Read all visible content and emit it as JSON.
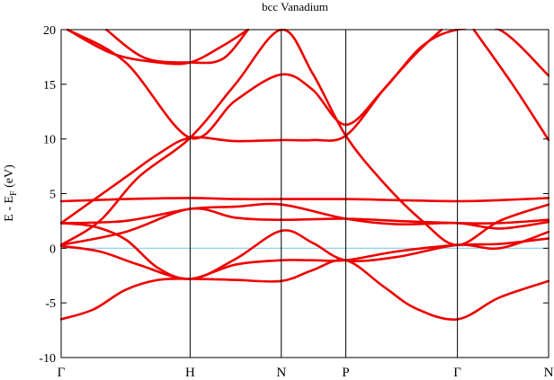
{
  "chart_data": {
    "type": "line",
    "title": "bcc Vanadium",
    "xlabel": "",
    "ylabel": "E - E",
    "ylabel_sub": "F",
    "ylabel_unit": " (eV)",
    "ylim": [
      -10,
      20
    ],
    "xlim": [
      0,
      6.0
    ],
    "yticks": [
      -10,
      -5,
      0,
      5,
      10,
      15,
      20
    ],
    "kpoints": [
      {
        "label": "Γ",
        "x": 0.0
      },
      {
        "label": "H",
        "x": 1.0
      },
      {
        "label": "N",
        "x": 1.7071
      },
      {
        "label": "P",
        "x": 2.2071
      },
      {
        "label": "Γ",
        "x": 3.0731
      },
      {
        "label": "N",
        "x": 3.7802
      }
    ],
    "fermi_level": 0,
    "fermi_color": "#87ceeb",
    "band_color": "#ee0000",
    "series": [
      {
        "x": [
          0,
          0.25,
          0.5,
          0.75,
          1.0,
          1.35,
          1.7071,
          1.95,
          2.2071,
          2.5,
          2.75,
          3.0731,
          3.4,
          3.7802
        ],
        "values": [
          -6.5,
          -5.6,
          -3.8,
          -2.9,
          -2.8,
          -2.9,
          -3.0,
          -2.0,
          -1.1,
          -3.5,
          -5.5,
          -6.5,
          -4.5,
          -3.0
        ]
      },
      {
        "x": [
          0,
          0.3,
          0.6,
          1.0,
          1.35,
          1.7071,
          1.95,
          2.2071,
          2.6,
          3.0731,
          3.4,
          3.7802
        ],
        "values": [
          0.2,
          -0.3,
          -1.5,
          -2.8,
          -1.0,
          1.6,
          0.5,
          -1.1,
          -0.8,
          0.3,
          0.0,
          1.5
        ]
      },
      {
        "x": [
          0,
          0.25,
          0.5,
          0.75,
          1.0,
          1.35,
          1.7071,
          1.95,
          2.2071,
          2.6,
          3.0731,
          3.4,
          3.7802
        ],
        "values": [
          2.3,
          2.0,
          0.8,
          -1.8,
          -2.8,
          -1.5,
          -1.1,
          -1.1,
          -1.1,
          -0.3,
          0.3,
          0.4,
          0.9
        ]
      },
      {
        "x": [
          0,
          0.5,
          1.0,
          1.35,
          1.7071,
          2.2071,
          2.6,
          3.0731,
          3.4,
          3.7802
        ],
        "values": [
          0.3,
          1.5,
          3.6,
          2.8,
          2.6,
          2.7,
          2.5,
          2.3,
          2.3,
          2.6
        ]
      },
      {
        "x": [
          0,
          0.5,
          1.0,
          1.35,
          1.7071,
          2.2071,
          2.6,
          3.0731,
          3.4,
          3.7802
        ],
        "values": [
          2.3,
          2.5,
          3.6,
          3.8,
          4.0,
          2.7,
          2.2,
          2.3,
          1.8,
          2.4
        ]
      },
      {
        "x": [
          0,
          0.5,
          1.0,
          1.35,
          1.7071,
          2.2071,
          2.6,
          3.0731,
          3.4,
          3.7802
        ],
        "values": [
          4.3,
          4.5,
          4.6,
          4.5,
          4.5,
          4.5,
          4.4,
          4.3,
          4.4,
          4.6
        ]
      },
      {
        "x": [
          0,
          0.3,
          0.6,
          1.0,
          1.35,
          1.7071,
          1.95,
          2.2071,
          2.5,
          2.8,
          3.0731,
          3.4,
          3.7802
        ],
        "values": [
          0.3,
          2.5,
          6.5,
          10.1,
          15.0,
          20.0,
          16.0,
          10.3,
          6.0,
          2.5,
          0.3,
          2.5,
          4.0
        ]
      },
      {
        "x": [
          0,
          0.5,
          0.75,
          1.0,
          1.35,
          1.7071,
          1.95,
          2.2071,
          2.5,
          2.75,
          2.95
        ],
        "values": [
          2.3,
          6.5,
          8.6,
          10.1,
          9.8,
          9.9,
          9.9,
          10.3,
          14.5,
          17.8,
          20.0
        ]
      },
      {
        "x": [
          0.05,
          0.5,
          1.0,
          1.35,
          1.7071,
          1.95,
          2.2071,
          2.5,
          2.8,
          3.0731,
          3.4,
          3.7802
        ],
        "values": [
          20.0,
          17.0,
          10.1,
          13.5,
          15.9,
          14.5,
          11.3,
          14.5,
          18.5,
          20.0,
          20.0,
          15.8
        ]
      },
      {
        "x": [
          0.35,
          0.65,
          1.0,
          1.25,
          1.45
        ],
        "values": [
          20.0,
          17.4,
          17.0,
          17.3,
          20.0
        ]
      },
      {
        "x": [
          0.05,
          0.4,
          0.75,
          1.0,
          1.25,
          1.45
        ],
        "values": [
          20.0,
          17.8,
          17.0,
          17.0,
          18.5,
          20.0
        ]
      },
      {
        "x": [
          3.2,
          3.5,
          3.7802
        ],
        "values": [
          20.0,
          15.0,
          9.9
        ]
      }
    ]
  }
}
